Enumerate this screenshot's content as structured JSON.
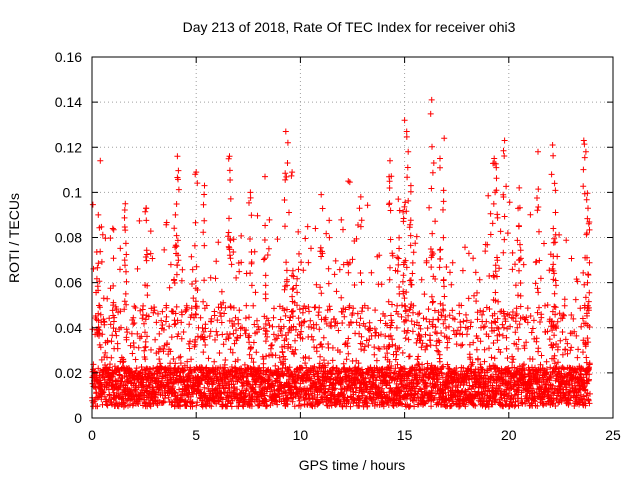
{
  "chart_data": {
    "type": "scatter",
    "title": "Day 213 of 2018, Rate Of TEC Index for receiver ohi3",
    "xlabel": "GPS time / hours",
    "ylabel": "ROTI / TECUs",
    "xlim": [
      0,
      25
    ],
    "ylim": [
      0,
      0.16
    ],
    "xticks": [
      0,
      5,
      10,
      15,
      20,
      25
    ],
    "xtick_labels": [
      "0",
      "5",
      "10",
      "15",
      "20",
      "25"
    ],
    "yticks": [
      0,
      0.02,
      0.04,
      0.06,
      0.08,
      0.1,
      0.12,
      0.14,
      0.16
    ],
    "ytick_labels": [
      "0",
      "0.02",
      "0.04",
      "0.06",
      "0.08",
      "0.1",
      "0.12",
      "0.14",
      "0.16"
    ],
    "grid": true,
    "marker": "+",
    "color": "#ff0000",
    "series": [
      {
        "name": "ROTI",
        "note": "dense band of points between 0.005 and 0.03 TECU across 0-24 h; sparse spikes listed below",
        "x_range": [
          0,
          23.9
        ],
        "dense_band": [
          0.005,
          0.03
        ],
        "spikes": [
          {
            "x": 0.4,
            "y": 0.114
          },
          {
            "x": 0.3,
            "y": 0.09
          },
          {
            "x": 1.0,
            "y": 0.084
          },
          {
            "x": 1.6,
            "y": 0.095
          },
          {
            "x": 2.6,
            "y": 0.093
          },
          {
            "x": 4.1,
            "y": 0.116
          },
          {
            "x": 4.0,
            "y": 0.09
          },
          {
            "x": 5.0,
            "y": 0.109
          },
          {
            "x": 5.4,
            "y": 0.103
          },
          {
            "x": 6.6,
            "y": 0.116
          },
          {
            "x": 7.6,
            "y": 0.1
          },
          {
            "x": 8.3,
            "y": 0.107
          },
          {
            "x": 9.3,
            "y": 0.127
          },
          {
            "x": 9.4,
            "y": 0.122
          },
          {
            "x": 9.6,
            "y": 0.109
          },
          {
            "x": 11.0,
            "y": 0.099
          },
          {
            "x": 12.3,
            "y": 0.105
          },
          {
            "x": 12.9,
            "y": 0.098
          },
          {
            "x": 14.3,
            "y": 0.114
          },
          {
            "x": 14.7,
            "y": 0.097
          },
          {
            "x": 15.0,
            "y": 0.132
          },
          {
            "x": 15.1,
            "y": 0.127
          },
          {
            "x": 15.3,
            "y": 0.103
          },
          {
            "x": 16.3,
            "y": 0.141
          },
          {
            "x": 16.4,
            "y": 0.113
          },
          {
            "x": 16.9,
            "y": 0.124
          },
          {
            "x": 16.7,
            "y": 0.115
          },
          {
            "x": 19.3,
            "y": 0.115
          },
          {
            "x": 19.4,
            "y": 0.111
          },
          {
            "x": 19.8,
            "y": 0.123
          },
          {
            "x": 20.5,
            "y": 0.102
          },
          {
            "x": 21.4,
            "y": 0.118
          },
          {
            "x": 22.1,
            "y": 0.121
          },
          {
            "x": 22.2,
            "y": 0.104
          },
          {
            "x": 23.6,
            "y": 0.123
          },
          {
            "x": 23.7,
            "y": 0.118
          },
          {
            "x": 23.8,
            "y": 0.093
          }
        ]
      }
    ]
  }
}
